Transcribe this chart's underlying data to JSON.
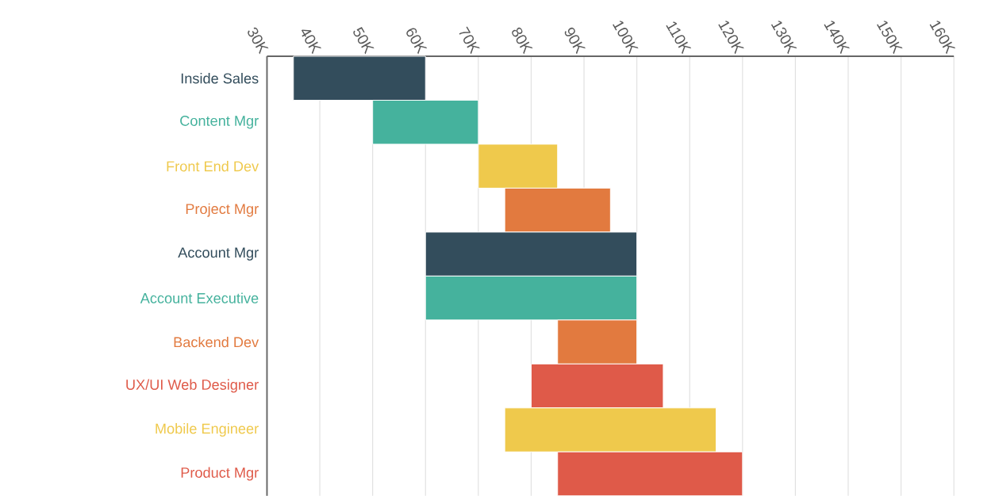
{
  "chart_data": {
    "type": "bar",
    "orientation": "horizontal",
    "categories": [
      "Inside Sales",
      "Content Mgr",
      "Front End Dev",
      "Project Mgr",
      "Account Mgr",
      "Account Executive",
      "Backend Dev",
      "UX/UI Web Designer",
      "Mobile Engineer",
      "Product Mgr"
    ],
    "base": [
      35000,
      50000,
      70000,
      75000,
      60000,
      60000,
      85000,
      80000,
      75000,
      85000
    ],
    "values": [
      25000,
      20000,
      15000,
      20000,
      40000,
      40000,
      15000,
      25000,
      40000,
      35000
    ],
    "colors": [
      "#334d5c",
      "#45b29d",
      "#efc94c",
      "#e27a3f",
      "#334d5c",
      "#45b29d",
      "#e27a3f",
      "#df5a49",
      "#efc94c",
      "#df5a49"
    ],
    "xlim": [
      30000,
      160000
    ],
    "xticks": [
      {
        "value": 30000,
        "label": "30K"
      },
      {
        "value": 40000,
        "label": "40K"
      },
      {
        "value": 50000,
        "label": "50K"
      },
      {
        "value": 60000,
        "label": "60K"
      },
      {
        "value": 70000,
        "label": "70K"
      },
      {
        "value": 80000,
        "label": "80K"
      },
      {
        "value": 90000,
        "label": "90K"
      },
      {
        "value": 100000,
        "label": "100K"
      },
      {
        "value": 110000,
        "label": "110K"
      },
      {
        "value": 120000,
        "label": "120K"
      },
      {
        "value": 130000,
        "label": "130K"
      },
      {
        "value": 140000,
        "label": "140K"
      },
      {
        "value": 150000,
        "label": "150K"
      },
      {
        "value": 160000,
        "label": "160K"
      }
    ],
    "grid": "x"
  }
}
